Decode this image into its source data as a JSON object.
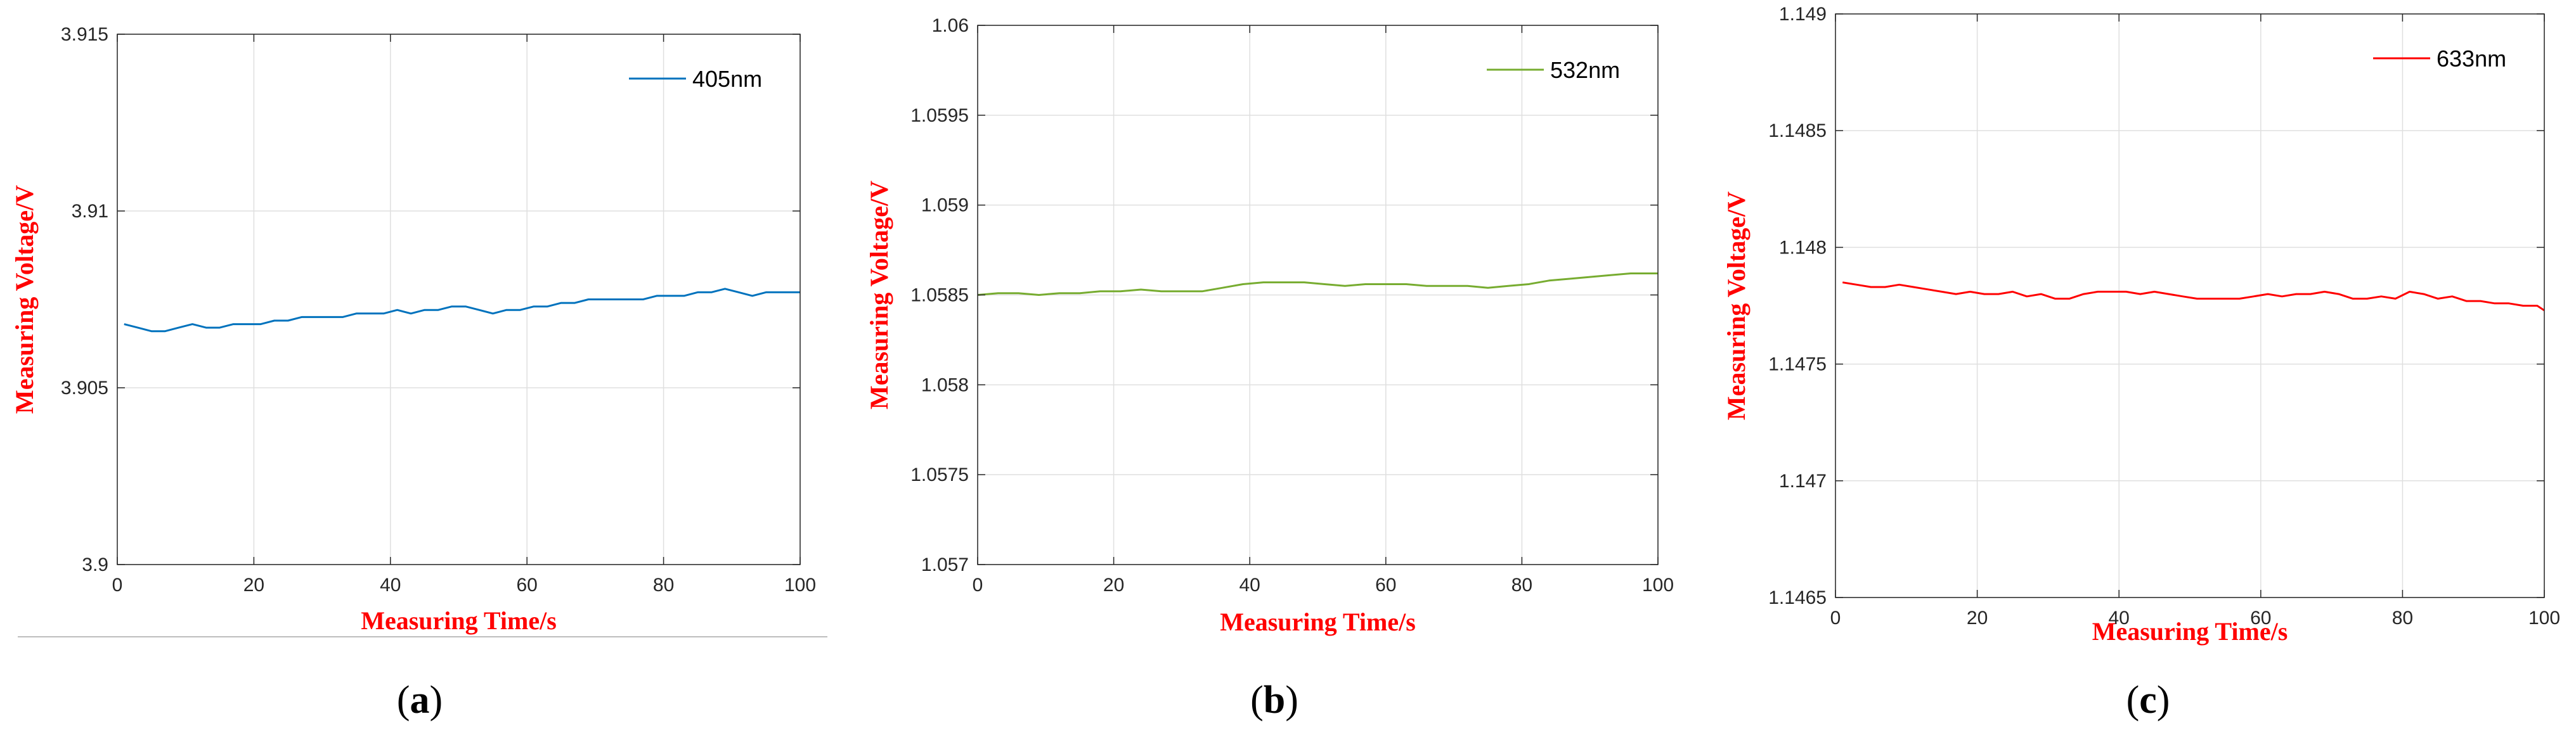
{
  "chart_data": [
    {
      "type": "line",
      "panel": "a",
      "caption_open": "(",
      "caption_letter": "a",
      "caption_close": ")",
      "xlabel": "Measuring Time/s",
      "ylabel": "Measuring Voltage/V",
      "xlim": [
        0,
        100
      ],
      "ylim": [
        3.9,
        3.915
      ],
      "xticks": [
        "0",
        "20",
        "40",
        "60",
        "80",
        "100"
      ],
      "yticks": [
        "3.9",
        "3.905",
        "3.91",
        "3.915"
      ],
      "grid": true,
      "legend_position": "top-right",
      "series": [
        {
          "name": "405nm",
          "color": "#0072BD",
          "x": [
            1,
            3,
            5,
            7,
            9,
            11,
            13,
            15,
            17,
            19,
            21,
            23,
            25,
            27,
            29,
            31,
            33,
            35,
            37,
            39,
            41,
            43,
            45,
            47,
            49,
            51,
            53,
            55,
            57,
            59,
            61,
            63,
            65,
            67,
            69,
            71,
            73,
            75,
            77,
            79,
            81,
            83,
            85,
            87,
            89,
            91,
            93,
            95,
            97,
            99,
            100
          ],
          "y": [
            3.9068,
            3.9067,
            3.9066,
            3.9066,
            3.9067,
            3.9068,
            3.9067,
            3.9067,
            3.9068,
            3.9068,
            3.9068,
            3.9069,
            3.9069,
            3.907,
            3.907,
            3.907,
            3.907,
            3.9071,
            3.9071,
            3.9071,
            3.9072,
            3.9071,
            3.9072,
            3.9072,
            3.9073,
            3.9073,
            3.9072,
            3.9071,
            3.9072,
            3.9072,
            3.9073,
            3.9073,
            3.9074,
            3.9074,
            3.9075,
            3.9075,
            3.9075,
            3.9075,
            3.9075,
            3.9076,
            3.9076,
            3.9076,
            3.9077,
            3.9077,
            3.9078,
            3.9077,
            3.9076,
            3.9077,
            3.9077,
            3.9077,
            3.9077
          ]
        }
      ]
    },
    {
      "type": "line",
      "panel": "b",
      "caption_open": "(",
      "caption_letter": "b",
      "caption_close": ")",
      "xlabel": "Measuring Time/s",
      "ylabel": "Measuring Voltage/V",
      "xlim": [
        0,
        100
      ],
      "ylim": [
        1.057,
        1.06
      ],
      "xticks": [
        "0",
        "20",
        "40",
        "60",
        "80",
        "100"
      ],
      "yticks": [
        "1.057",
        "1.0575",
        "1.058",
        "1.0585",
        "1.059",
        "1.0595",
        "1.06"
      ],
      "grid": true,
      "legend_position": "top-right",
      "series": [
        {
          "name": "532nm",
          "color": "#77AC30",
          "x": [
            0,
            3,
            6,
            9,
            12,
            15,
            18,
            21,
            24,
            27,
            30,
            33,
            36,
            39,
            42,
            45,
            48,
            51,
            54,
            57,
            60,
            63,
            66,
            69,
            72,
            75,
            78,
            81,
            84,
            87,
            90,
            93,
            96,
            99,
            100
          ],
          "y": [
            1.0585,
            1.05851,
            1.05851,
            1.0585,
            1.05851,
            1.05851,
            1.05852,
            1.05852,
            1.05853,
            1.05852,
            1.05852,
            1.05852,
            1.05854,
            1.05856,
            1.05857,
            1.05857,
            1.05857,
            1.05856,
            1.05855,
            1.05856,
            1.05856,
            1.05856,
            1.05855,
            1.05855,
            1.05855,
            1.05854,
            1.05855,
            1.05856,
            1.05858,
            1.05859,
            1.0586,
            1.05861,
            1.05862,
            1.05862,
            1.05862
          ]
        }
      ]
    },
    {
      "type": "line",
      "panel": "c",
      "caption_open": "(",
      "caption_letter": "c",
      "caption_close": ")",
      "xlabel": "Measuring Time/s",
      "ylabel": "Measuring Voltage/V",
      "xlim": [
        0,
        100
      ],
      "ylim": [
        1.1465,
        1.149
      ],
      "xticks": [
        "0",
        "20",
        "40",
        "60",
        "80",
        "100"
      ],
      "yticks": [
        "1.1465",
        "1.147",
        "1.1475",
        "1.148",
        "1.1485",
        "1.149"
      ],
      "grid": true,
      "legend_position": "top-right",
      "series": [
        {
          "name": "633nm",
          "color": "#FF0000",
          "x": [
            1,
            3,
            5,
            7,
            9,
            11,
            13,
            15,
            17,
            19,
            21,
            23,
            25,
            27,
            29,
            31,
            33,
            35,
            37,
            39,
            41,
            43,
            45,
            47,
            49,
            51,
            53,
            55,
            57,
            59,
            61,
            63,
            65,
            67,
            69,
            71,
            73,
            75,
            77,
            79,
            81,
            83,
            85,
            87,
            89,
            91,
            93,
            95,
            97,
            99,
            100
          ],
          "y": [
            1.14785,
            1.14784,
            1.14783,
            1.14783,
            1.14784,
            1.14783,
            1.14782,
            1.14781,
            1.1478,
            1.14781,
            1.1478,
            1.1478,
            1.14781,
            1.14779,
            1.1478,
            1.14778,
            1.14778,
            1.1478,
            1.14781,
            1.14781,
            1.14781,
            1.1478,
            1.14781,
            1.1478,
            1.14779,
            1.14778,
            1.14778,
            1.14778,
            1.14778,
            1.14779,
            1.1478,
            1.14779,
            1.1478,
            1.1478,
            1.14781,
            1.1478,
            1.14778,
            1.14778,
            1.14779,
            1.14778,
            1.14781,
            1.1478,
            1.14778,
            1.14779,
            1.14777,
            1.14777,
            1.14776,
            1.14776,
            1.14775,
            1.14775,
            1.14773
          ]
        }
      ]
    }
  ]
}
